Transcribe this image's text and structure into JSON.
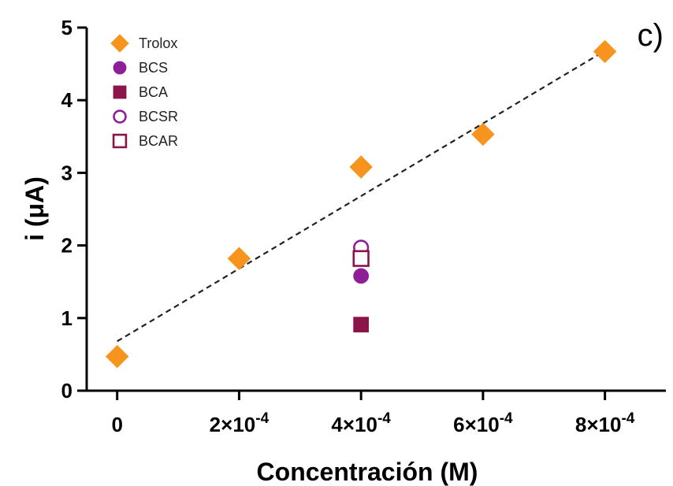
{
  "chart_data": {
    "type": "scatter",
    "panel_label": "c)",
    "title": "",
    "xlabel": "Concentración (M)",
    "ylabel": "i (μA)",
    "xlim": [
      -5e-05,
      0.0009
    ],
    "ylim": [
      0,
      5
    ],
    "x_ticks": [
      0,
      0.0002,
      0.0004,
      0.0006,
      0.0008
    ],
    "x_tick_labels": [
      "0",
      "2×10",
      "4×10",
      "6×10",
      "8×10"
    ],
    "x_tick_exponent": "-4",
    "y_ticks": [
      0,
      1,
      2,
      3,
      4,
      5
    ],
    "y_tick_labels": [
      "0",
      "1",
      "2",
      "3",
      "4",
      "5"
    ],
    "grid": false,
    "legend_position": "top-left",
    "series": [
      {
        "name": "Trolox",
        "marker": "diamond",
        "filled": true,
        "color": "#F7941D",
        "x": [
          0,
          0.0002,
          0.0004,
          0.0006,
          0.0008
        ],
        "y": [
          0.47,
          1.82,
          3.08,
          3.53,
          4.67
        ]
      },
      {
        "name": "BCS",
        "marker": "circle",
        "filled": true,
        "color": "#8E1F96",
        "x": [
          0.0004
        ],
        "y": [
          1.58
        ]
      },
      {
        "name": "BCA",
        "marker": "square",
        "filled": true,
        "color": "#8B1449",
        "x": [
          0.0004
        ],
        "y": [
          0.91
        ]
      },
      {
        "name": "BCSR",
        "marker": "circle",
        "filled": false,
        "color": "#8E1F96",
        "x": [
          0.0004
        ],
        "y": [
          1.97
        ]
      },
      {
        "name": "BCAR",
        "marker": "square",
        "filled": false,
        "color": "#8B1449",
        "x": [
          0.0004
        ],
        "y": [
          1.82
        ]
      }
    ],
    "fit_line": {
      "style": "dashed",
      "color": "#222222",
      "x": [
        0,
        0.0008
      ],
      "y": [
        0.68,
        4.68
      ]
    }
  }
}
